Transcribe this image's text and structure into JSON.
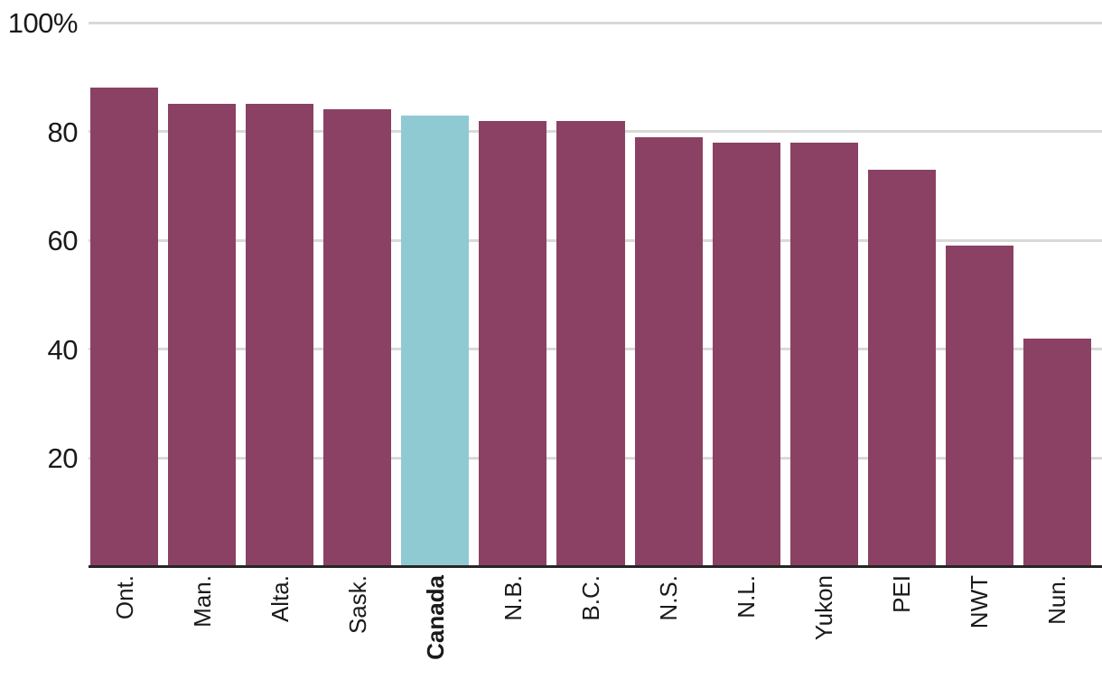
{
  "chart_data": {
    "type": "bar",
    "categories": [
      "Ont.",
      "Man.",
      "Alta.",
      "Sask.",
      "Canada",
      "N.B.",
      "B.C.",
      "N.S.",
      "N.L.",
      "Yukon",
      "PEI",
      "NWT",
      "Nun."
    ],
    "values": [
      88,
      85,
      85,
      84,
      83,
      82,
      82,
      79,
      78,
      78,
      73,
      59,
      42
    ],
    "highlight_category": "Canada",
    "highlight_index": 4,
    "ylim": [
      0,
      100
    ],
    "yticks": [
      {
        "value": 100,
        "label": "100%"
      },
      {
        "value": 80,
        "label": "80"
      },
      {
        "value": 60,
        "label": "60"
      },
      {
        "value": 40,
        "label": "40"
      },
      {
        "value": 20,
        "label": "20"
      }
    ],
    "grid": true,
    "legend_position": "none",
    "bar_color": "#8B4164",
    "highlight_color": "#8FCAD3",
    "gridline_color": "#D9D9D9",
    "axis_line_color": "#262626",
    "label_color": "#1A1A1A"
  }
}
